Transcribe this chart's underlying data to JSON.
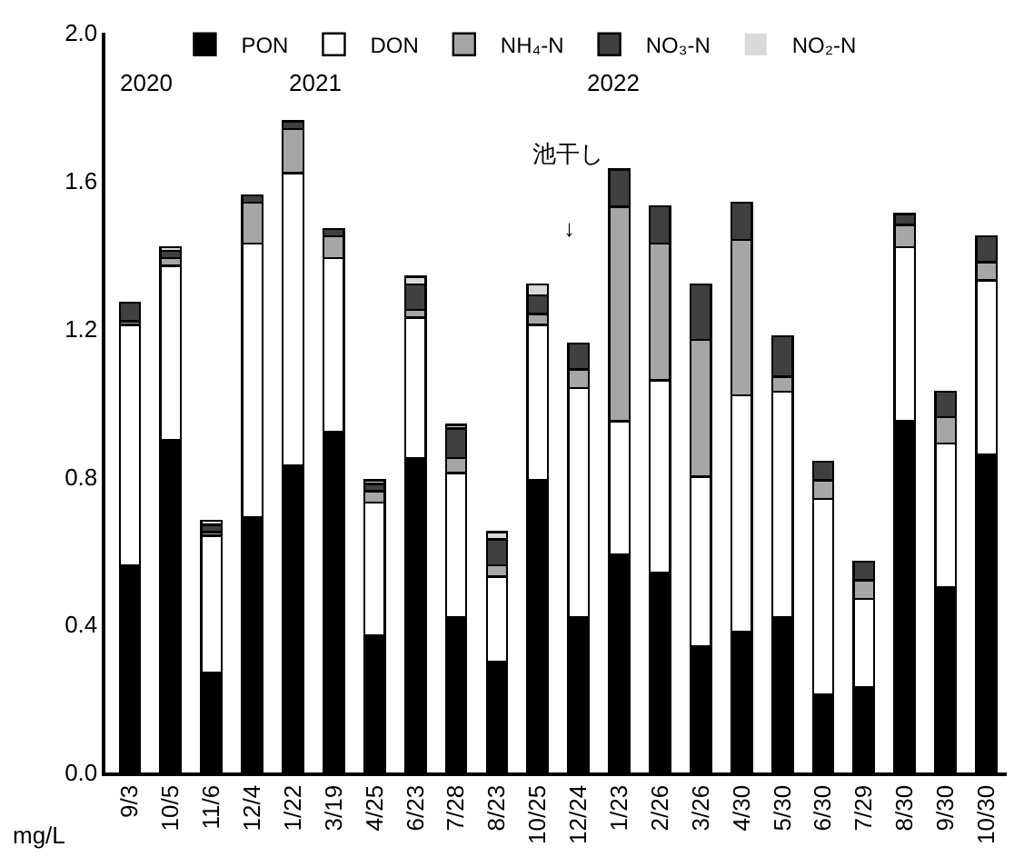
{
  "chart_data": {
    "type": "bar",
    "stacked": true,
    "ylabel": "mg/L",
    "legend": "top",
    "grid": false,
    "categories": [
      "9/3",
      "10/5",
      "11/6",
      "12/4",
      "1/22",
      "3/19",
      "4/25",
      "6/23",
      "7/28",
      "8/23",
      "10/25",
      "12/24",
      "1/23",
      "2/26",
      "3/26",
      "4/30",
      "5/30",
      "6/30",
      "7/29",
      "8/30",
      "9/30",
      "10/30"
    ],
    "ylim": [
      0,
      2
    ],
    "yticks": [
      {
        "value": 0,
        "label": "0.0"
      },
      {
        "value": 0.4,
        "label": "0.4"
      },
      {
        "value": 0.8,
        "label": "0.8"
      },
      {
        "value": 1.2,
        "label": "1.2"
      },
      {
        "value": 1.6,
        "label": "1.6"
      },
      {
        "value": 2,
        "label": "2.0"
      }
    ],
    "series": [
      {
        "name": "PON",
        "color": "#000000",
        "values": [
          0.56,
          0.9,
          0.27,
          0.69,
          0.83,
          0.92,
          0.37,
          0.85,
          0.42,
          0.3,
          0.79,
          0.42,
          0.59,
          0.54,
          0.34,
          0.38,
          0.42,
          0.21,
          0.23,
          0.95,
          0.5,
          0.86
        ]
      },
      {
        "name": "DON",
        "color": "#ffffff",
        "values": [
          0.65,
          0.47,
          0.37,
          0.74,
          0.79,
          0.47,
          0.36,
          0.38,
          0.39,
          0.23,
          0.42,
          0.62,
          0.36,
          0.52,
          0.46,
          0.64,
          0.61,
          0.53,
          0.24,
          0.47,
          0.39,
          0.47
        ]
      },
      {
        "name": "NH₄-N",
        "color": "#a6a6a6",
        "values": [
          0.01,
          0.02,
          0.01,
          0.11,
          0.12,
          0.06,
          0.03,
          0.02,
          0.04,
          0.03,
          0.03,
          0.05,
          0.58,
          0.37,
          0.37,
          0.42,
          0.04,
          0.05,
          0.05,
          0.06,
          0.07,
          0.05
        ]
      },
      {
        "name": "NO₃-N",
        "color": "#404040",
        "values": [
          0.05,
          0.02,
          0.02,
          0.02,
          0.02,
          0.02,
          0.02,
          0.07,
          0.08,
          0.07,
          0.05,
          0.07,
          0.1,
          0.1,
          0.15,
          0.1,
          0.11,
          0.05,
          0.05,
          0.03,
          0.07,
          0.07
        ]
      },
      {
        "name": "NO₂-N",
        "color": "#d9d9d9",
        "values": [
          0,
          0.01,
          0.01,
          0,
          0,
          0,
          0.01,
          0.02,
          0.01,
          0.02,
          0.03,
          0,
          0,
          0,
          0,
          0,
          0,
          0,
          0,
          0,
          0,
          0
        ]
      }
    ],
    "annotations": [
      "2020",
      "2021",
      "2022",
      "池干し",
      "↓"
    ]
  }
}
